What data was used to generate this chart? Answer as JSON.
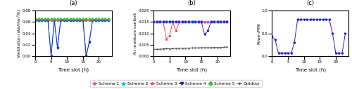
{
  "time": [
    0,
    1,
    2,
    3,
    4,
    5,
    6,
    7,
    8,
    9,
    10,
    11,
    12,
    13,
    14,
    15,
    16,
    17,
    18,
    19,
    20,
    21,
    22,
    23
  ],
  "ventilation_scheme1": [
    0.063,
    0.063,
    0.063,
    0.063,
    0.063,
    0.063,
    0.063,
    0.063,
    0.063,
    0.063,
    0.063,
    0.063,
    0.063,
    0.063,
    0.063,
    0.063,
    0.063,
    0.063,
    0.063,
    0.063,
    0.063,
    0.063,
    0.063,
    0.063
  ],
  "ventilation_scheme2": [
    0.063,
    0.063,
    0.063,
    0.063,
    0.063,
    0.0,
    0.063,
    0.015,
    0.063,
    0.063,
    0.063,
    0.063,
    0.063,
    0.063,
    0.063,
    0.063,
    0.0,
    0.025,
    0.063,
    0.063,
    0.063,
    0.063,
    0.063,
    0.063
  ],
  "ventilation_scheme3": [
    0.063,
    0.063,
    0.063,
    0.063,
    0.063,
    0.063,
    0.063,
    0.063,
    0.063,
    0.063,
    0.063,
    0.063,
    0.063,
    0.063,
    0.063,
    0.063,
    0.063,
    0.063,
    0.063,
    0.063,
    0.063,
    0.063,
    0.063,
    0.063
  ],
  "ventilation_scheme4": [
    0.063,
    0.063,
    0.063,
    0.063,
    0.063,
    0.0,
    0.063,
    0.015,
    0.063,
    0.063,
    0.063,
    0.063,
    0.063,
    0.063,
    0.063,
    0.063,
    0.0,
    0.025,
    0.063,
    0.063,
    0.063,
    0.063,
    0.063,
    0.063
  ],
  "ventilation_scheme5": [
    0.065,
    0.065,
    0.065,
    0.065,
    0.065,
    0.065,
    0.065,
    0.065,
    0.065,
    0.065,
    0.065,
    0.065,
    0.065,
    0.065,
    0.065,
    0.065,
    0.065,
    0.065,
    0.065,
    0.065,
    0.065,
    0.065,
    0.065,
    0.065
  ],
  "moisture_scheme1": [
    0.015,
    0.015,
    0.015,
    0.015,
    0.015,
    0.015,
    0.015,
    0.015,
    0.015,
    0.015,
    0.015,
    0.015,
    0.015,
    0.015,
    0.015,
    0.015,
    0.015,
    0.015,
    0.015,
    0.015,
    0.015,
    0.015,
    0.015,
    0.015
  ],
  "moisture_scheme2": [
    0.015,
    0.015,
    0.015,
    0.015,
    0.015,
    0.015,
    0.015,
    0.015,
    0.015,
    0.015,
    0.015,
    0.015,
    0.015,
    0.015,
    0.015,
    0.015,
    0.015,
    0.015,
    0.015,
    0.015,
    0.015,
    0.015,
    0.015,
    0.015
  ],
  "moisture_scheme3": [
    0.015,
    0.015,
    0.015,
    0.015,
    0.0075,
    0.009,
    0.015,
    0.011,
    0.015,
    0.015,
    0.015,
    0.015,
    0.015,
    0.015,
    0.015,
    0.015,
    0.015,
    0.015,
    0.015,
    0.015,
    0.015,
    0.015,
    0.015,
    0.015
  ],
  "moisture_scheme4": [
    0.015,
    0.015,
    0.015,
    0.015,
    0.015,
    0.015,
    0.015,
    0.015,
    0.015,
    0.015,
    0.015,
    0.015,
    0.015,
    0.015,
    0.015,
    0.015,
    0.0095,
    0.011,
    0.015,
    0.015,
    0.015,
    0.015,
    0.015,
    0.015
  ],
  "moisture_outdoor": [
    0.003,
    0.003,
    0.003,
    0.0032,
    0.0033,
    0.0032,
    0.0033,
    0.0034,
    0.0034,
    0.0035,
    0.0035,
    0.0035,
    0.0036,
    0.0036,
    0.0036,
    0.0037,
    0.0037,
    0.0037,
    0.0037,
    0.0038,
    0.0038,
    0.0038,
    0.0039,
    0.004
  ],
  "power_scheme4": [
    0.43,
    0.35,
    0.06,
    0.06,
    0.06,
    0.06,
    0.06,
    0.3,
    0.8,
    0.8,
    0.8,
    0.8,
    0.8,
    0.8,
    0.8,
    0.8,
    0.8,
    0.8,
    0.8,
    0.5,
    0.06,
    0.06,
    0.06,
    0.5
  ],
  "colors": {
    "scheme1": "#d55fa0",
    "scheme2": "#00bfff",
    "scheme3": "#ff4444",
    "scheme4": "#2222cc",
    "scheme5": "#44bb44",
    "outdoor": "#555555"
  },
  "markers": {
    "scheme1": "p",
    "scheme2": "^",
    "scheme3": "*",
    "scheme4": "v",
    "scheme5": "D",
    "outdoor": "+"
  },
  "ylabel_a": "Ventilation rate/(hm³/h)",
  "ylabel_b": "Air moisture content",
  "ylabel_c": "Power/MW",
  "xlabel": "Time slot (h)",
  "title_a": "(a)",
  "title_b": "(b)",
  "title_c": "(c)",
  "ylim_a": [
    0,
    0.08
  ],
  "ylim_b": [
    0,
    0.02
  ],
  "ylim_c": [
    0,
    1
  ],
  "xlim": [
    0,
    24
  ],
  "xticks": [
    0,
    5,
    10,
    15,
    20
  ],
  "yticks_a": [
    0,
    0.02,
    0.04,
    0.06,
    0.08
  ],
  "yticks_b": [
    0,
    0.005,
    0.01,
    0.015,
    0.02
  ],
  "yticks_c": [
    0,
    0.5,
    1.0
  ],
  "legend_labels": [
    "Scheme 1",
    "Scheme 2",
    "Scheme 3",
    "Scheme 4",
    "Scheme 5",
    "Outdoor"
  ]
}
